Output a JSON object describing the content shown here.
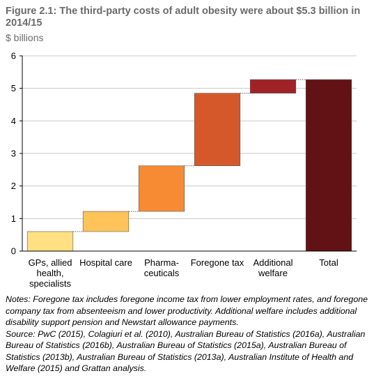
{
  "figure": {
    "title": "Figure 2.1: The third-party costs of adult obesity were about $5.3 billion in 2014/15",
    "subtitle": "$ billions"
  },
  "chart_data": {
    "type": "bar",
    "variant": "waterfall",
    "categories": [
      [
        "GPs, allied",
        "health,",
        "specialists"
      ],
      [
        "Hospital care"
      ],
      [
        "Pharma-",
        "ceuticals"
      ],
      [
        "Foregone tax"
      ],
      [
        "Additional",
        "welfare"
      ],
      [
        "Total"
      ]
    ],
    "bars": [
      {
        "start": 0,
        "end": 0.6,
        "color": "#FFE083"
      },
      {
        "start": 0.6,
        "end": 1.22,
        "color": "#FFC35A"
      },
      {
        "start": 1.22,
        "end": 2.62,
        "color": "#F68B33"
      },
      {
        "start": 2.62,
        "end": 4.85,
        "color": "#D4582A"
      },
      {
        "start": 4.85,
        "end": 5.27,
        "color": "#A02226"
      },
      {
        "start": 0,
        "end": 5.27,
        "color": "#621214"
      }
    ],
    "ylim": [
      0,
      6
    ],
    "yticks": [
      "0",
      "1",
      "2",
      "3",
      "4",
      "5",
      "6"
    ],
    "grid": true,
    "connector_lines": "dotted"
  },
  "notes": {
    "note": "Notes: Foregone tax includes foregone income tax from lower employment rates, and foregone company tax from absenteeism and lower productivity. Additional welfare includes additional disability support pension and Newstart allowance payments.",
    "source": "Source: PwC (2015), Colagiuri et al. (2010), Australian Bureau of Statistics (2016a), Australian Bureau of Statistics (2016b), Australian Bureau of Statistics (2015a), Australian Bureau of Statistics (2013b), Australian Bureau of Statistics (2013a), Australian Institute of Health and Welfare (2015) and Grattan analysis."
  }
}
